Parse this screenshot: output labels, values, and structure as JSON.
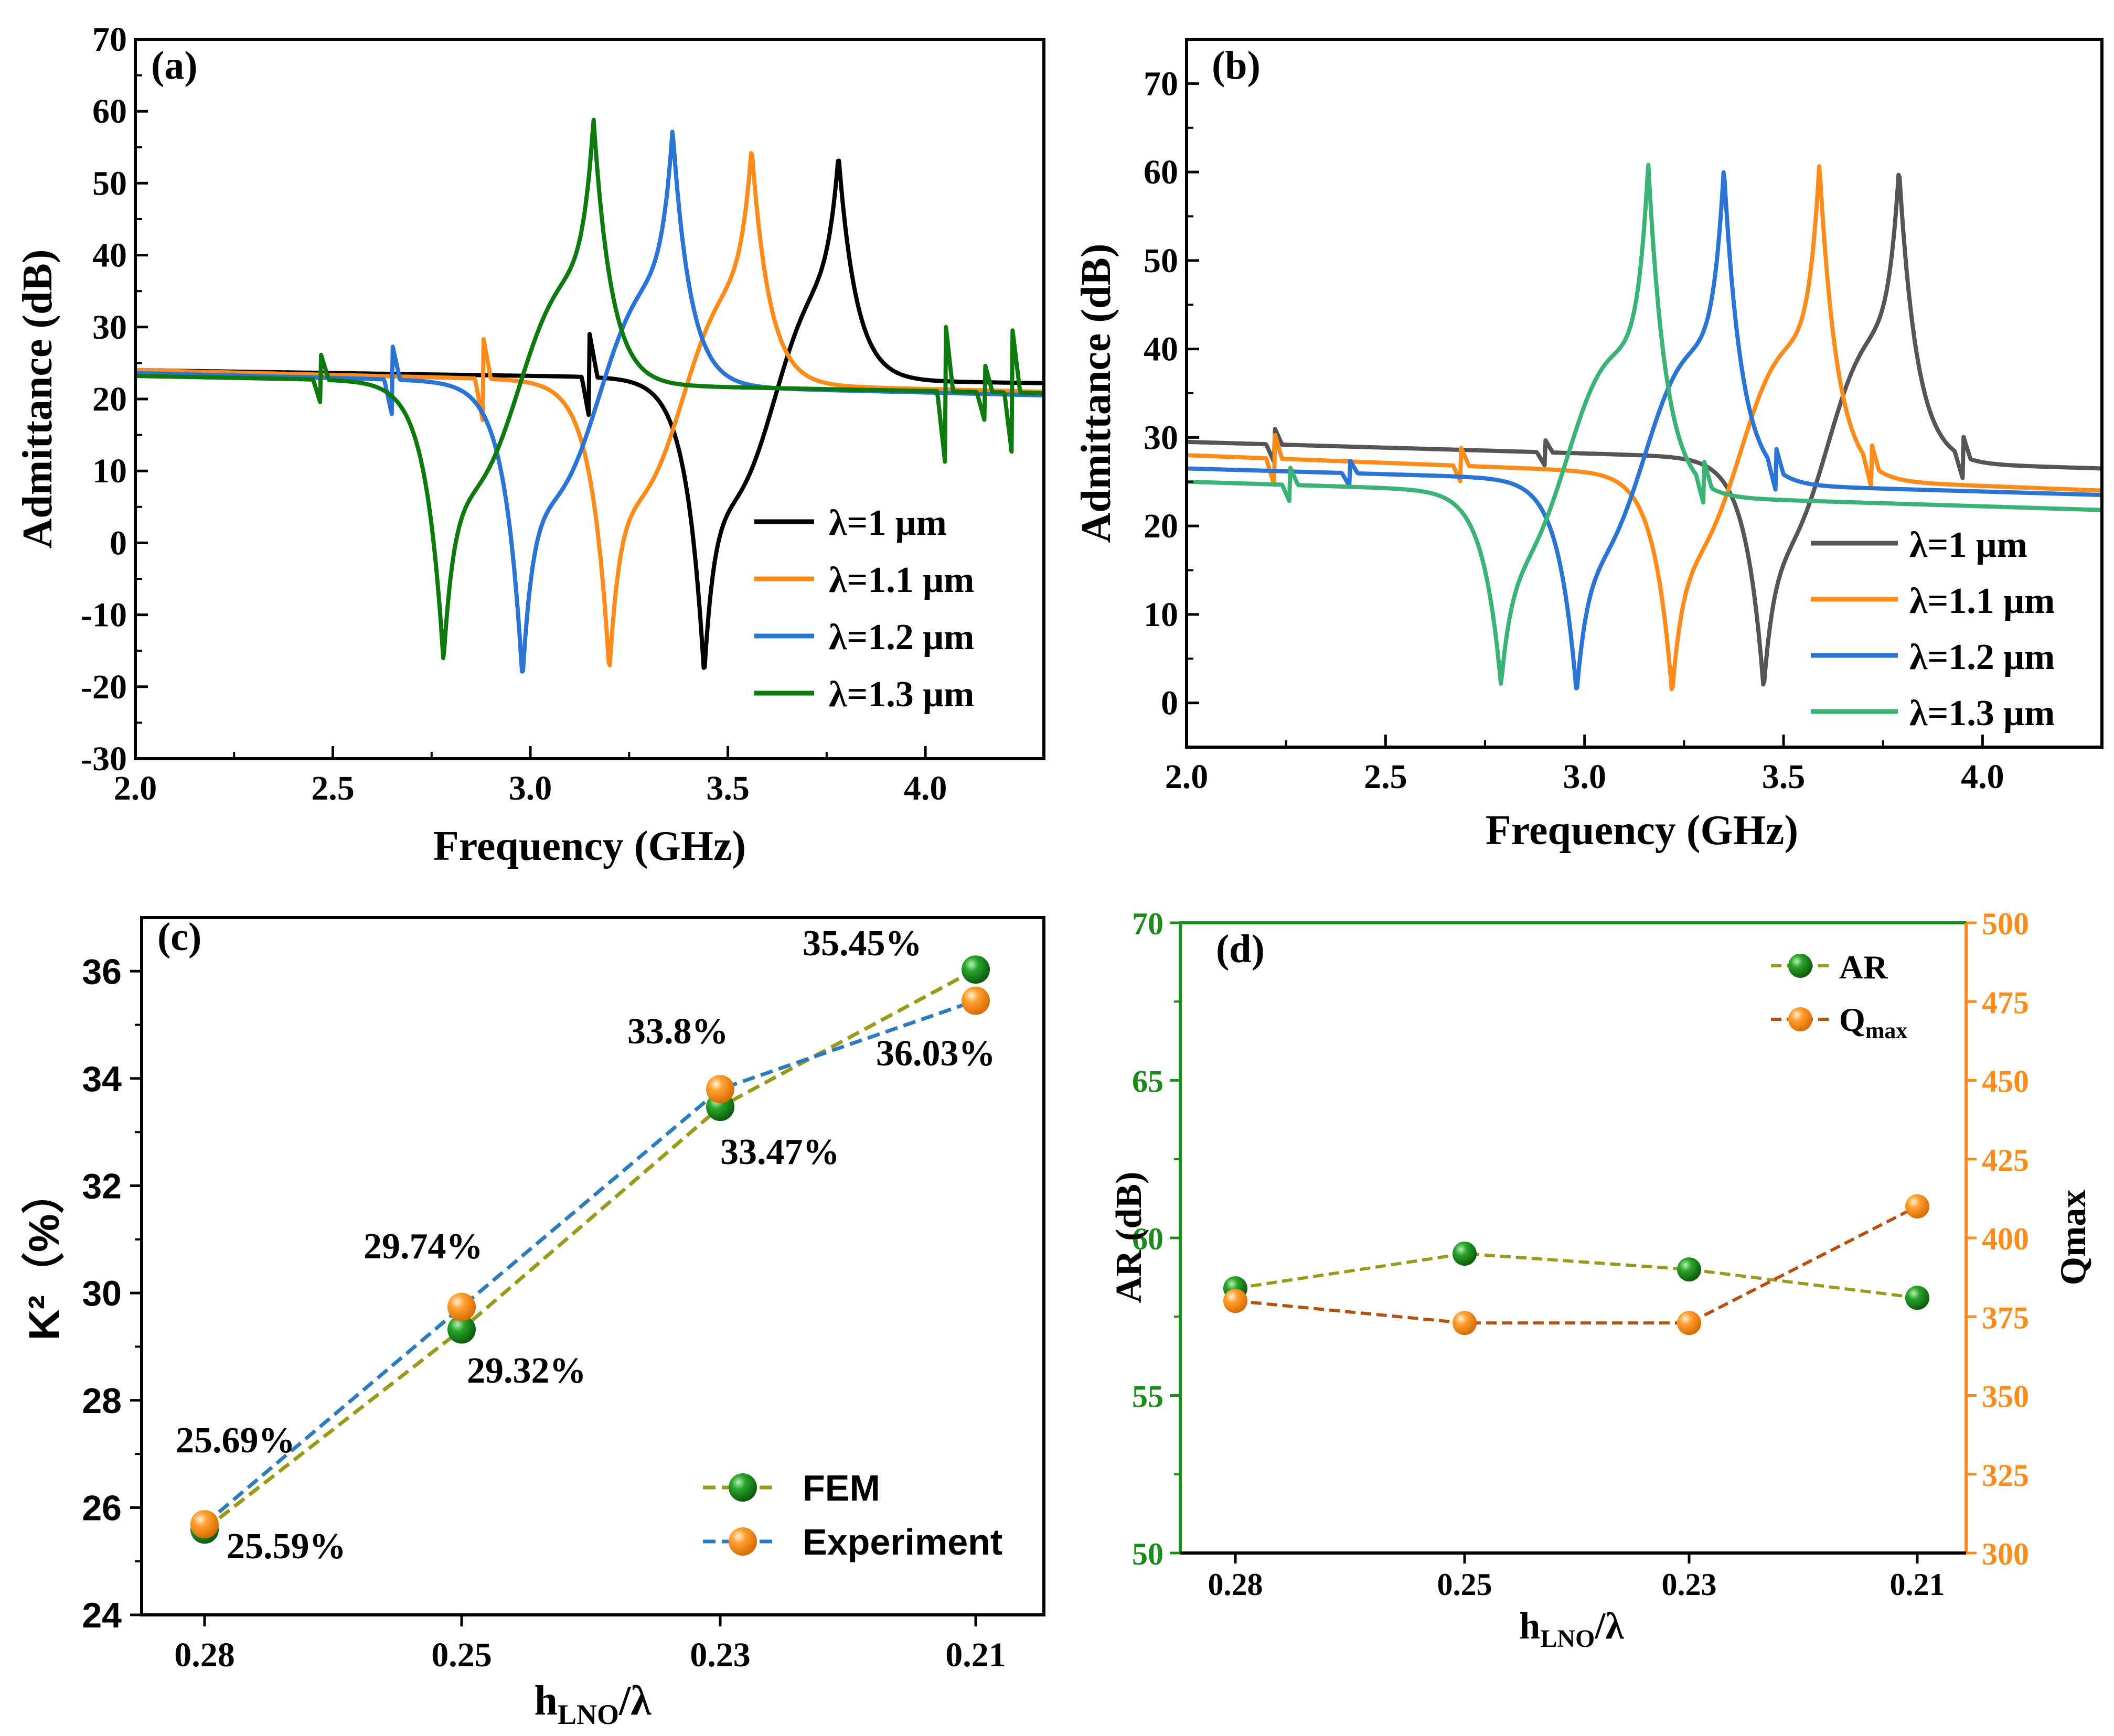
{
  "colors": {
    "black": "#000000",
    "gray": "#555555",
    "orange": "#ff8c1a",
    "blue": "#2a74d6",
    "green": "#0d7a0d",
    "teal": "#3cb376",
    "olive": "#9a9a1a",
    "dblue": "#2b7bbd",
    "brown": "#b5500e",
    "axisGreen": "#1a8c1a",
    "axisOrange": "#ff8c1a"
  },
  "chart_data": [
    {
      "id": "a",
      "type": "line",
      "panel_label": "(a)",
      "xlabel": "Frequency (GHz)",
      "ylabel": "Admittance (dB)",
      "xlim": [
        2.0,
        4.3
      ],
      "ylim": [
        -30,
        70
      ],
      "xticks": [
        "2.0",
        "2.5",
        "3.0",
        "3.5",
        "4.0"
      ],
      "xtick_values": [
        2.0,
        2.5,
        3.0,
        3.5,
        4.0
      ],
      "yticks": [
        "-30",
        "-20",
        "-10",
        "0",
        "10",
        "20",
        "30",
        "40",
        "50",
        "60",
        "70"
      ],
      "ytick_values": [
        -30,
        -20,
        -10,
        0,
        10,
        20,
        30,
        40,
        50,
        60,
        70
      ],
      "legend_position": "bottom-right",
      "series": [
        {
          "name": "λ=1 μm",
          "color": "#000000",
          "fr": 3.44,
          "fa": 3.78,
          "min": -18.5,
          "max": 54,
          "start": 24,
          "end": 22.2,
          "spurs": [
            [
              3.15,
              6
            ]
          ]
        },
        {
          "name": "λ=1.1 μm",
          "color": "#ff8c1a",
          "fr": 3.2,
          "fa": 3.56,
          "min": -18,
          "max": 55,
          "start": 24,
          "end": 21,
          "spurs": [
            [
              2.88,
              6
            ]
          ]
        },
        {
          "name": "λ=1.2 μm",
          "color": "#2a74d6",
          "fr": 2.98,
          "fa": 3.36,
          "min": -19,
          "max": 57.5,
          "start": 23.6,
          "end": 20.5,
          "spurs": [
            [
              2.65,
              5
            ]
          ]
        },
        {
          "name": "λ=1.3 μm",
          "color": "#0d7a0d",
          "fr": 2.78,
          "fa": 3.16,
          "min": -16.5,
          "max": 59,
          "start": 23.2,
          "end": 20.8,
          "spurs": [
            [
              2.47,
              3.5
            ],
            [
              4.05,
              10
            ],
            [
              4.15,
              4
            ],
            [
              4.22,
              9
            ]
          ]
        }
      ]
    },
    {
      "id": "b",
      "type": "line",
      "panel_label": "(b)",
      "xlabel": "Frequency (GHz)",
      "ylabel": "Admittance (dB)",
      "xlim": [
        2.0,
        4.3
      ],
      "ylim": [
        -5,
        75
      ],
      "xticks": [
        "2.0",
        "2.5",
        "3.0",
        "3.5",
        "4.0"
      ],
      "xtick_values": [
        2.0,
        2.5,
        3.0,
        3.5,
        4.0
      ],
      "yticks": [
        "0",
        "10",
        "20",
        "30",
        "40",
        "50",
        "60",
        "70"
      ],
      "ytick_values": [
        0,
        10,
        20,
        30,
        40,
        50,
        60,
        70
      ],
      "legend_position": "bottom-right",
      "series": [
        {
          "name": "λ=1 μm",
          "color": "#555555",
          "fr": 3.45,
          "fa": 3.79,
          "min": 1.5,
          "max": 60.5,
          "start": 29.5,
          "end": 26.5,
          "spurs": [
            [
              2.22,
              2
            ],
            [
              2.9,
              1.5
            ],
            [
              3.95,
              2.5
            ]
          ]
        },
        {
          "name": "λ=1.1 μm",
          "color": "#ff8c1a",
          "fr": 3.22,
          "fa": 3.59,
          "min": 1,
          "max": 61,
          "start": 28,
          "end": 24,
          "spurs": [
            [
              2.22,
              3
            ],
            [
              2.69,
              2
            ],
            [
              3.72,
              2.5
            ]
          ]
        },
        {
          "name": "λ=1.2 μm",
          "color": "#2a74d6",
          "fr": 2.98,
          "fa": 3.35,
          "min": 1,
          "max": 60.5,
          "start": 26.5,
          "end": 23.5,
          "spurs": [
            [
              2.41,
              1.5
            ],
            [
              3.48,
              2.5
            ]
          ]
        },
        {
          "name": "λ=1.3 μm",
          "color": "#3cb376",
          "fr": 2.79,
          "fa": 3.16,
          "min": 2,
          "max": 61,
          "start": 25,
          "end": 21.8,
          "spurs": [
            [
              2.26,
              2
            ],
            [
              3.3,
              2.5
            ]
          ]
        }
      ]
    },
    {
      "id": "c",
      "type": "line",
      "panel_label": "(c)",
      "xlabel_main": "h",
      "xlabel_sub": "LNO",
      "xlabel_tail": "/λ",
      "ylabel": "K²（%）",
      "categories": [
        "0.28",
        "0.25",
        "0.23",
        "0.21"
      ],
      "ylim": [
        24,
        37
      ],
      "yticks": [
        "24",
        "26",
        "28",
        "30",
        "32",
        "34",
        "36"
      ],
      "ytick_values": [
        24,
        26,
        28,
        30,
        32,
        34,
        36
      ],
      "legend_position": "bottom-right",
      "series": [
        {
          "name": "FEM",
          "line_color": "#9a9a1a",
          "marker_color": "#0d7a0d",
          "values": [
            25.59,
            29.32,
            33.47,
            36.03
          ]
        },
        {
          "name": "Experiment",
          "line_color": "#2b7bbd",
          "marker_color": "#ff8c1a",
          "values": [
            25.69,
            29.74,
            33.8,
            35.45
          ]
        }
      ],
      "annotations": [
        "25.69%",
        "25.59%",
        "29.74%",
        "29.32%",
        "33.8%",
        "33.47%",
        "35.45%",
        "36.03%"
      ]
    },
    {
      "id": "d",
      "type": "line",
      "panel_label": "(d)",
      "xlabel_main": "h",
      "xlabel_sub": "LNO",
      "xlabel_tail": "/λ",
      "ylabel_left": "AR (dB)",
      "ylabel_right": "Qmax",
      "categories": [
        "0.28",
        "0.25",
        "0.23",
        "0.21"
      ],
      "ylim_left": [
        50,
        70
      ],
      "yticks_left": [
        "50",
        "55",
        "60",
        "65",
        "70"
      ],
      "ytick_values_left": [
        50,
        55,
        60,
        65,
        70
      ],
      "ylim_right": [
        300,
        500
      ],
      "yticks_right": [
        "300",
        "325",
        "350",
        "375",
        "400",
        "425",
        "450",
        "475",
        "500"
      ],
      "ytick_values_right": [
        300,
        325,
        350,
        375,
        400,
        425,
        450,
        475,
        500
      ],
      "legend_position": "top-right",
      "series": [
        {
          "name": "AR",
          "axis": "left",
          "line_color": "#9a9a1a",
          "marker_color": "#0d7a0d",
          "values": [
            58.4,
            59.5,
            59,
            58.1
          ]
        },
        {
          "name": "Q",
          "name_sub": "max",
          "axis": "right",
          "line_color": "#b5500e",
          "marker_color": "#ff8c1a",
          "values": [
            380,
            373,
            373,
            410
          ]
        }
      ]
    }
  ]
}
